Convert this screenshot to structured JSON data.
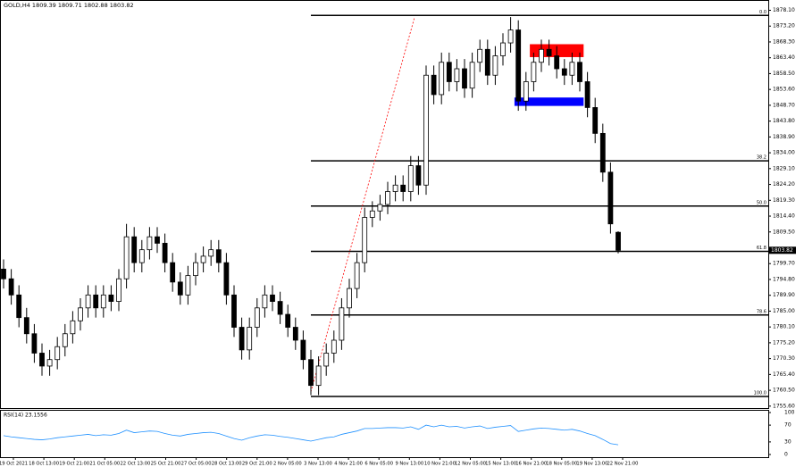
{
  "chart_data": [
    {
      "type": "candlestick",
      "title": "GOLD,H4  1809.39 1809.71 1802.88 1803.82",
      "open": [
        1798,
        1795,
        1790,
        1783,
        1778,
        1772,
        1768,
        1770,
        1774,
        1778,
        1782,
        1786,
        1790,
        1786,
        1790,
        1788,
        1795,
        1808,
        1800,
        1804,
        1808,
        1806,
        1800,
        1794,
        1790,
        1796,
        1800,
        1802,
        1804,
        1800,
        1790,
        1780,
        1773,
        1780,
        1786,
        1790,
        1788,
        1784,
        1780,
        1776,
        1770,
        1762,
        1768,
        1772,
        1776,
        1786,
        1792,
        1800,
        1814,
        1816,
        1818,
        1822,
        1824,
        1822,
        1830,
        1824,
        1858,
        1852,
        1862,
        1856,
        1860,
        1854,
        1862,
        1866,
        1858,
        1864,
        1868,
        1872,
        1850,
        1856,
        1862,
        1866,
        1864,
        1860,
        1858,
        1862,
        1856,
        1848,
        1840,
        1828,
        1809.39
      ],
      "high": [
        1801,
        1798,
        1793,
        1786,
        1781,
        1775,
        1773,
        1777,
        1781,
        1785,
        1789,
        1793,
        1793,
        1793,
        1793,
        1798,
        1812,
        1811,
        1807,
        1811,
        1811,
        1809,
        1803,
        1797,
        1799,
        1803,
        1805,
        1807,
        1807,
        1803,
        1793,
        1783,
        1783,
        1789,
        1793,
        1793,
        1791,
        1787,
        1783,
        1779,
        1773,
        1771,
        1775,
        1779,
        1789,
        1795,
        1803,
        1817,
        1819,
        1821,
        1825,
        1827,
        1827,
        1833,
        1833,
        1861,
        1861,
        1865,
        1865,
        1863,
        1863,
        1865,
        1869,
        1869,
        1867,
        1871,
        1876,
        1875,
        1859,
        1865,
        1869,
        1869,
        1867,
        1863,
        1865,
        1865,
        1859,
        1851,
        1843,
        1831,
        1809.71
      ],
      "low": [
        1792,
        1787,
        1780,
        1775,
        1769,
        1765,
        1765,
        1767,
        1771,
        1775,
        1779,
        1783,
        1783,
        1783,
        1785,
        1785,
        1792,
        1797,
        1797,
        1801,
        1803,
        1797,
        1791,
        1787,
        1787,
        1793,
        1797,
        1799,
        1797,
        1787,
        1777,
        1770,
        1770,
        1777,
        1783,
        1785,
        1781,
        1777,
        1773,
        1767,
        1759,
        1759,
        1765,
        1769,
        1773,
        1783,
        1789,
        1797,
        1811,
        1813,
        1815,
        1819,
        1819,
        1819,
        1821,
        1821,
        1849,
        1849,
        1853,
        1853,
        1851,
        1851,
        1859,
        1855,
        1855,
        1861,
        1865,
        1847,
        1847,
        1853,
        1859,
        1861,
        1857,
        1855,
        1855,
        1853,
        1845,
        1837,
        1825,
        1809,
        1802.88
      ],
      "close": [
        1795,
        1790,
        1783,
        1778,
        1772,
        1768,
        1770,
        1774,
        1778,
        1782,
        1786,
        1790,
        1786,
        1790,
        1788,
        1795,
        1808,
        1800,
        1804,
        1808,
        1806,
        1800,
        1794,
        1790,
        1796,
        1800,
        1802,
        1804,
        1800,
        1790,
        1780,
        1773,
        1780,
        1786,
        1790,
        1788,
        1784,
        1780,
        1776,
        1770,
        1762,
        1768,
        1772,
        1776,
        1786,
        1792,
        1800,
        1814,
        1816,
        1818,
        1822,
        1824,
        1822,
        1830,
        1824,
        1858,
        1852,
        1862,
        1856,
        1860,
        1854,
        1862,
        1866,
        1858,
        1864,
        1868,
        1872,
        1850,
        1856,
        1862,
        1866,
        1864,
        1860,
        1858,
        1862,
        1856,
        1848,
        1840,
        1828,
        1812,
        1803.82
      ],
      "last_price": 1803.82,
      "ylim": [
        1755.0,
        1881.0
      ],
      "yticks": [
        {
          "value": 1878.1,
          "label": "1878.10"
        },
        {
          "value": 1873.2,
          "label": "1873.20"
        },
        {
          "value": 1868.3,
          "label": "1868.30"
        },
        {
          "value": 1863.4,
          "label": "1863.40"
        },
        {
          "value": 1858.5,
          "label": "1858.50"
        },
        {
          "value": 1853.6,
          "label": "1853.60"
        },
        {
          "value": 1848.7,
          "label": "1848.70"
        },
        {
          "value": 1843.8,
          "label": "1843.80"
        },
        {
          "value": 1838.9,
          "label": "1838.90"
        },
        {
          "value": 1834.0,
          "label": "1834.00"
        },
        {
          "value": 1829.1,
          "label": "1829.10"
        },
        {
          "value": 1824.2,
          "label": "1824.20"
        },
        {
          "value": 1819.3,
          "label": "1819.30"
        },
        {
          "value": 1814.4,
          "label": "1814.40"
        },
        {
          "value": 1809.5,
          "label": "1809.50"
        },
        {
          "value": 1799.7,
          "label": "1799.70"
        },
        {
          "value": 1794.8,
          "label": "1794.80"
        },
        {
          "value": 1789.9,
          "label": "1789.90"
        },
        {
          "value": 1785.0,
          "label": "1785.00"
        },
        {
          "value": 1780.1,
          "label": "1780.10"
        },
        {
          "value": 1775.2,
          "label": "1775.20"
        },
        {
          "value": 1770.3,
          "label": "1770.30"
        },
        {
          "value": 1765.4,
          "label": "1765.40"
        },
        {
          "value": 1760.5,
          "label": "1760.50"
        },
        {
          "value": 1755.6,
          "label": "1755.60"
        }
      ],
      "x_labels": [
        "19 Oct 2021",
        "18 Oct 13:00",
        "19 Oct 21:00",
        "21 Oct 05:00",
        "22 Oct 13:00",
        "25 Oct 21:00",
        "27 Oct 05:00",
        "28 Oct 13:00",
        "29 Oct 21:00",
        "2 Nov 05:00",
        "3 Nov 13:00",
        "4 Nov 21:00",
        "6 Nov 05:00",
        "9 Nov 13:00",
        "10 Nov 21:00",
        "12 Nov 05:00",
        "15 Nov 13:00",
        "16 Nov 21:00",
        "18 Nov 05:00",
        "19 Nov 13:00",
        "22 Nov 21:00"
      ],
      "fib_start": 40,
      "fib_levels": [
        {
          "value": 1876.5,
          "label": "0.0"
        },
        {
          "value": 1831.5,
          "label": "38.2"
        },
        {
          "value": 1817.5,
          "label": "50.0"
        },
        {
          "value": 1803.5,
          "label": "61.8"
        },
        {
          "value": 1783.8,
          "label": "78.6"
        },
        {
          "value": 1758.6,
          "label": "100.0"
        }
      ],
      "zones": [
        {
          "color": "#ff0000",
          "low": 1863.6,
          "high": 1867.6,
          "start": 68.5,
          "end": 75.5
        },
        {
          "color": "#0000ff",
          "low": 1848.5,
          "high": 1851.1,
          "start": 66.5,
          "end": 75.5
        }
      ],
      "trendline": {
        "color": "#ff0000",
        "x": [
          40,
          53.5
        ],
        "y": [
          1760,
          1876
        ]
      }
    },
    {
      "type": "line",
      "title": "RSI(14) 23.1556",
      "color": "#1e90ff",
      "values": [
        45,
        42,
        40,
        38,
        36,
        35,
        37,
        40,
        42,
        44,
        46,
        48,
        45,
        47,
        46,
        50,
        58,
        52,
        54,
        56,
        55,
        50,
        46,
        44,
        48,
        50,
        52,
        53,
        50,
        44,
        38,
        34,
        40,
        44,
        47,
        46,
        43,
        41,
        38,
        35,
        32,
        36,
        40,
        42,
        48,
        52,
        56,
        62,
        62,
        63,
        64,
        64,
        63,
        66,
        60,
        70,
        66,
        70,
        66,
        67,
        63,
        66,
        68,
        62,
        65,
        67,
        69,
        55,
        58,
        61,
        63,
        62,
        60,
        58,
        60,
        56,
        50,
        45,
        36,
        26,
        23.1556
      ],
      "ylim": [
        0,
        100
      ],
      "yticks": [
        100,
        70,
        30,
        0
      ]
    }
  ]
}
